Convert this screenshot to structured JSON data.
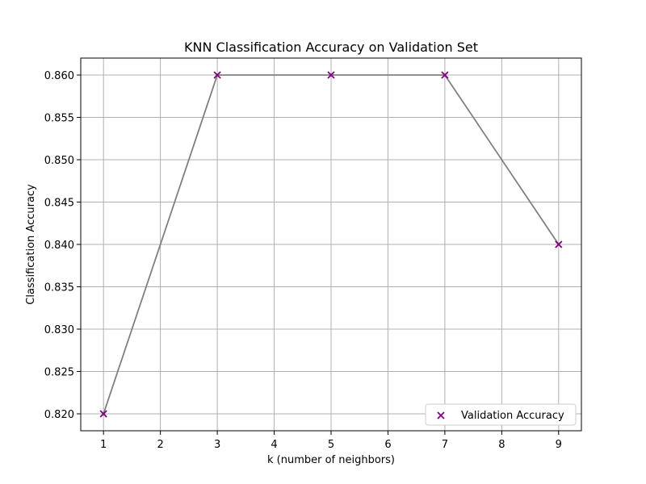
{
  "chart_data": {
    "type": "line",
    "title": "KNN Classification Accuracy on Validation Set",
    "xlabel": "k (number of neighbors)",
    "ylabel": "Classification Accuracy",
    "xlim": [
      0.6,
      9.4
    ],
    "ylim": [
      0.818,
      0.862
    ],
    "xticks": [
      1,
      2,
      3,
      4,
      5,
      6,
      7,
      8,
      9
    ],
    "yticks": [
      0.82,
      0.825,
      0.83,
      0.835,
      0.84,
      0.845,
      0.85,
      0.855,
      0.86
    ],
    "ytick_labels": [
      "0.820",
      "0.825",
      "0.830",
      "0.835",
      "0.840",
      "0.845",
      "0.850",
      "0.855",
      "0.860"
    ],
    "grid": true,
    "legend_position": "lower-right",
    "series": [
      {
        "name": "Validation Accuracy",
        "x": [
          1,
          3,
          5,
          7,
          9
        ],
        "y": [
          0.82,
          0.86,
          0.86,
          0.86,
          0.84
        ],
        "line_color": "#808080",
        "marker": "x",
        "marker_color": "#800080"
      }
    ]
  }
}
